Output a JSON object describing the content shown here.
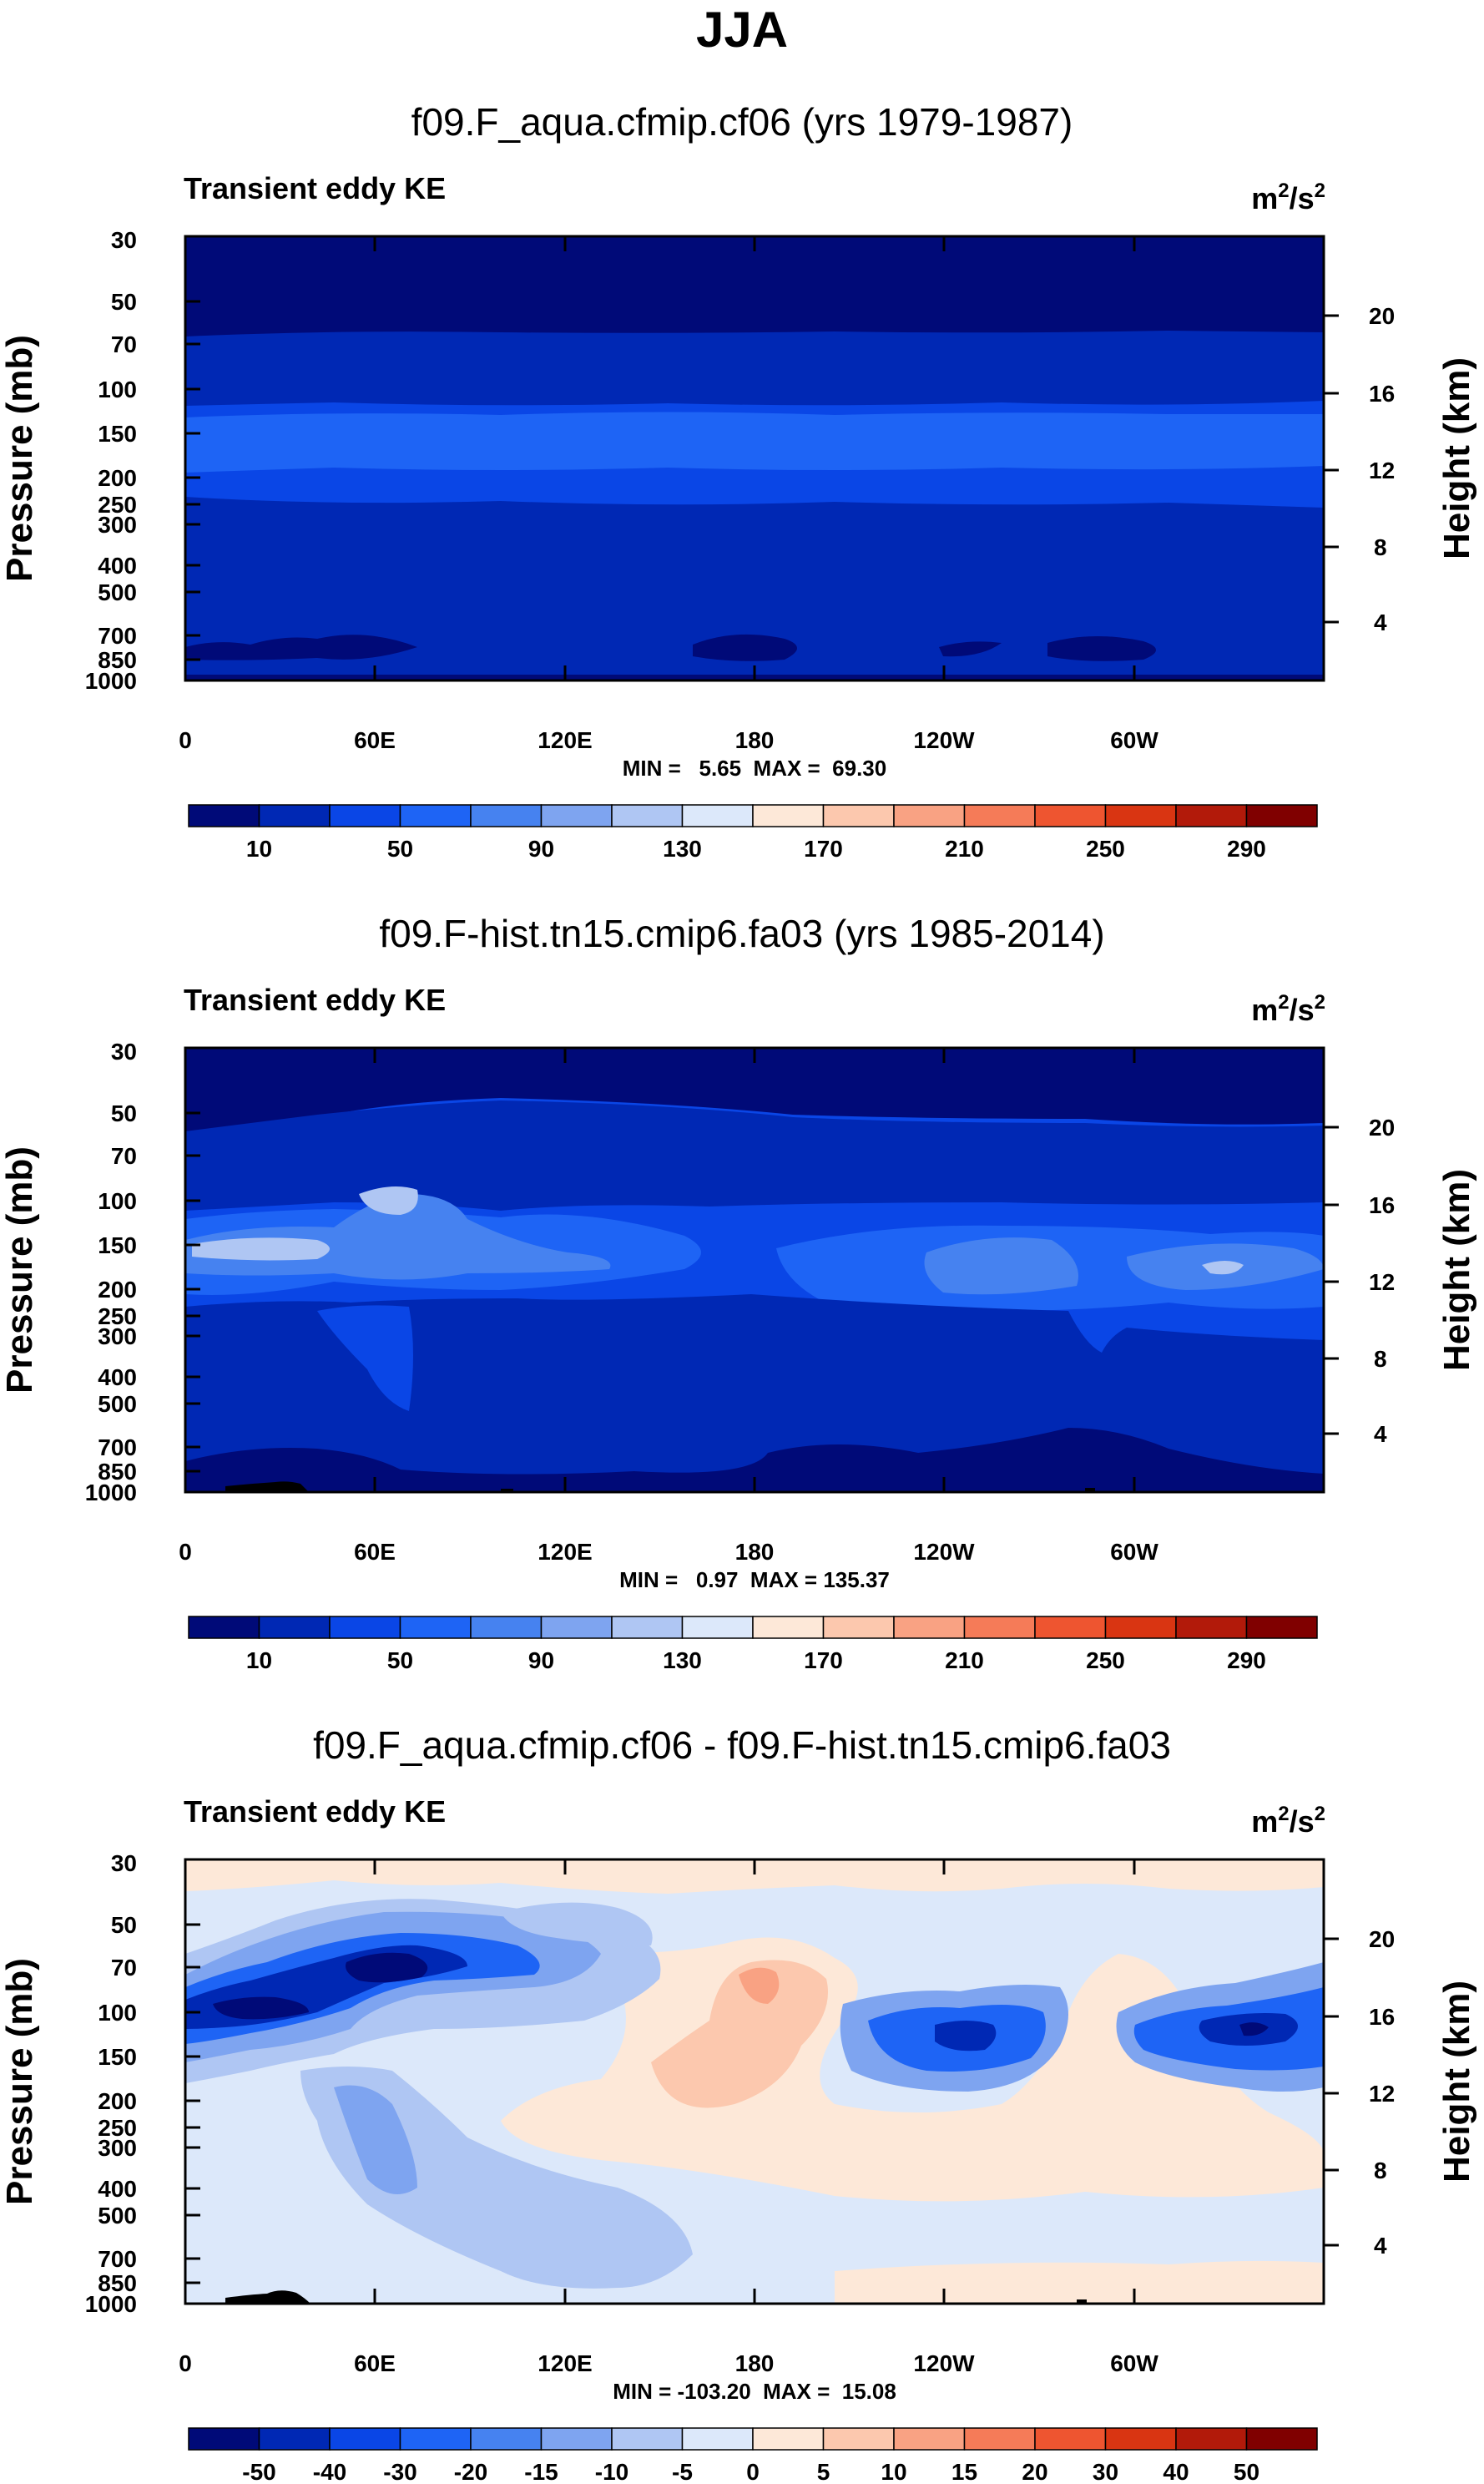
{
  "page_title": "JJA",
  "chart_data": [
    {
      "type": "heatmap",
      "title": "f09.F_aqua.cfmip.cf06 (yrs 1979-1987)",
      "subtitle": "Transient eddy KE",
      "units": "m²/s²",
      "units_base": "m",
      "units_sup1": "2",
      "units_mid": "/s",
      "units_sup2": "2",
      "ylabel": "Pressure (mb)",
      "ylabel_right": "Height (km)",
      "xticks": [
        "0",
        "60E",
        "120E",
        "180",
        "120W",
        "60W"
      ],
      "yticks": [
        "30",
        "50",
        "70",
        "100",
        "150",
        "200",
        "250",
        "300",
        "400",
        "500",
        "700",
        "850",
        "1000"
      ],
      "height_ticks": [
        "20",
        "16",
        "12",
        "8",
        "4"
      ],
      "min": 5.65,
      "max": 69.3,
      "stats": "MIN =   5.65  MAX =  69.30",
      "colorbar_labels": [
        "10",
        "50",
        "90",
        "130",
        "170",
        "210",
        "250",
        "290"
      ],
      "colorbar_colors": [
        "#000a78",
        "#0028b4",
        "#0a46e6",
        "#1e64f5",
        "#4682f0",
        "#7ea4f0",
        "#afc6f3",
        "#dce8fa",
        "#fde8d8",
        "#fcc8ae",
        "#f9a283",
        "#f57b58",
        "#ee5530",
        "#d93512",
        "#b21a0a",
        "#800000"
      ]
    },
    {
      "type": "heatmap",
      "title": "f09.F-hist.tn15.cmip6.fa03 (yrs 1985-2014)",
      "subtitle": "Transient eddy KE",
      "units": "m²/s²",
      "units_base": "m",
      "units_sup1": "2",
      "units_mid": "/s",
      "units_sup2": "2",
      "ylabel": "Pressure (mb)",
      "ylabel_right": "Height (km)",
      "xticks": [
        "0",
        "60E",
        "120E",
        "180",
        "120W",
        "60W"
      ],
      "yticks": [
        "30",
        "50",
        "70",
        "100",
        "150",
        "200",
        "250",
        "300",
        "400",
        "500",
        "700",
        "850",
        "1000"
      ],
      "height_ticks": [
        "20",
        "16",
        "12",
        "8",
        "4"
      ],
      "min": 0.97,
      "max": 135.37,
      "stats": "MIN =   0.97  MAX = 135.37",
      "colorbar_labels": [
        "10",
        "50",
        "90",
        "130",
        "170",
        "210",
        "250",
        "290"
      ],
      "colorbar_colors": [
        "#000a78",
        "#0028b4",
        "#0a46e6",
        "#1e64f5",
        "#4682f0",
        "#7ea4f0",
        "#afc6f3",
        "#dce8fa",
        "#fde8d8",
        "#fcc8ae",
        "#f9a283",
        "#f57b58",
        "#ee5530",
        "#d93512",
        "#b21a0a",
        "#800000"
      ]
    },
    {
      "type": "heatmap",
      "title": "f09.F_aqua.cfmip.cf06 - f09.F-hist.tn15.cmip6.fa03",
      "subtitle": "Transient eddy KE",
      "units": "m²/s²",
      "units_base": "m",
      "units_sup1": "2",
      "units_mid": "/s",
      "units_sup2": "2",
      "ylabel": "Pressure (mb)",
      "ylabel_right": "Height (km)",
      "xticks": [
        "0",
        "60E",
        "120E",
        "180",
        "120W",
        "60W"
      ],
      "yticks": [
        "30",
        "50",
        "70",
        "100",
        "150",
        "200",
        "250",
        "300",
        "400",
        "500",
        "700",
        "850",
        "1000"
      ],
      "height_ticks": [
        "20",
        "16",
        "12",
        "8",
        "4"
      ],
      "min": -103.2,
      "max": 15.08,
      "stats": "MIN = -103.20  MAX =  15.08",
      "colorbar_labels": [
        "-50",
        "-40",
        "-30",
        "-20",
        "-15",
        "-10",
        "-5",
        "0",
        "5",
        "10",
        "15",
        "20",
        "30",
        "40",
        "50"
      ],
      "colorbar_colors": [
        "#000a78",
        "#0028b4",
        "#0a46e6",
        "#1e64f5",
        "#4682f0",
        "#7ea4f0",
        "#afc6f3",
        "#dce8fa",
        "#fde8d8",
        "#fcc8ae",
        "#f9a283",
        "#f57b58",
        "#ee5530",
        "#d93512",
        "#b21a0a",
        "#800000"
      ]
    }
  ]
}
